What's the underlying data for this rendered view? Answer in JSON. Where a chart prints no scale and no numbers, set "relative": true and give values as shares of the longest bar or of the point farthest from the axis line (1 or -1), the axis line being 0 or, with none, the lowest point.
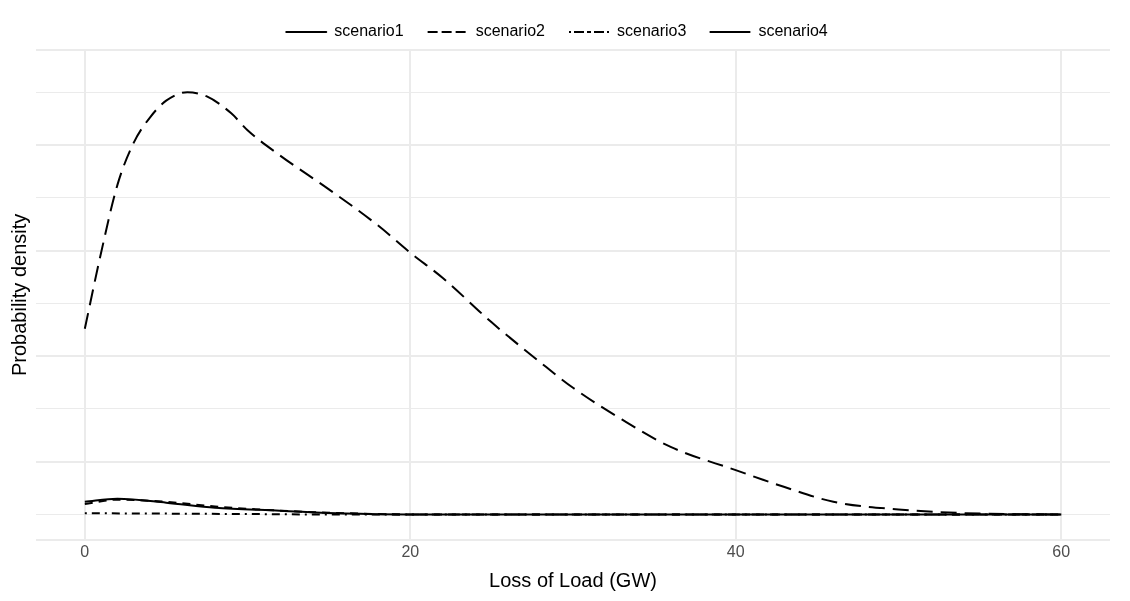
{
  "chart_data": {
    "type": "line",
    "xlabel": "Loss of Load (GW)",
    "ylabel": "Probability density",
    "relative": true,
    "xlim": [
      -3,
      63
    ],
    "xticks": [
      0,
      20,
      40,
      60
    ],
    "grid": true,
    "legend": "top",
    "marker": "none",
    "series": [
      {
        "name": "scenario1",
        "color": "#000000",
        "line_style": "solid",
        "x": [
          0,
          2,
          5,
          8,
          12,
          16,
          20,
          30,
          40,
          50,
          60
        ],
        "values": [
          0.03,
          0.037,
          0.028,
          0.016,
          0.009,
          0.002,
          0,
          0,
          0,
          0,
          0
        ]
      },
      {
        "name": "scenario2",
        "color": "#000000",
        "line_style": "dashed",
        "x": [
          0,
          2,
          5,
          8,
          12,
          17,
          20,
          30,
          40,
          50,
          60
        ],
        "values": [
          0.025,
          0.035,
          0.03,
          0.019,
          0.009,
          0.002,
          0,
          0,
          0,
          0,
          0
        ]
      },
      {
        "name": "scenario3",
        "color": "#000000",
        "line_style": "dashdot",
        "x": [
          0,
          5,
          10,
          15,
          20,
          30,
          40,
          50,
          60
        ],
        "values": [
          0.003,
          0.002,
          0.001,
          0,
          0,
          0,
          0,
          0,
          0
        ]
      },
      {
        "name": "scenario4",
        "color": "#000000",
        "line_style": "longdash",
        "x": [
          0,
          1,
          2,
          3,
          4,
          5,
          6.3,
          7.5,
          9,
          10,
          12,
          15,
          18,
          20,
          22,
          25,
          28,
          30,
          33,
          36,
          40,
          43,
          46,
          50,
          55,
          60
        ],
        "values": [
          0.44,
          0.62,
          0.78,
          0.88,
          0.94,
          0.98,
          1,
          0.99,
          0.95,
          0.91,
          0.85,
          0.77,
          0.685,
          0.62,
          0.56,
          0.455,
          0.36,
          0.3,
          0.225,
          0.16,
          0.105,
          0.065,
          0.03,
          0.012,
          0.002,
          0
        ]
      }
    ]
  }
}
